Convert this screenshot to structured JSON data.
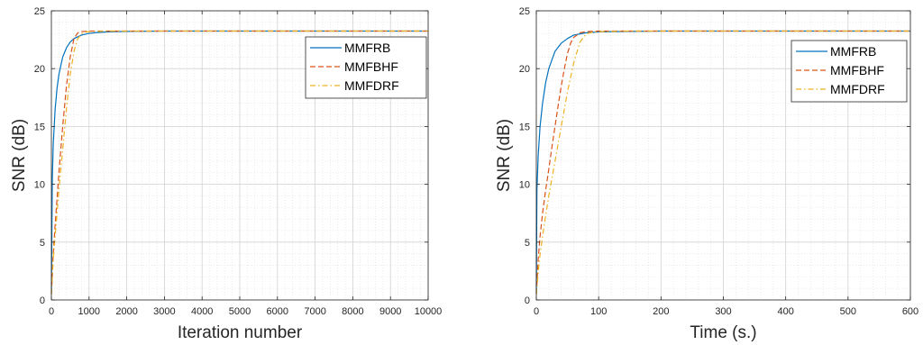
{
  "chart_data": [
    {
      "type": "line",
      "title": "",
      "xlabel": "Iteration number",
      "ylabel": "SNR (dB)",
      "xlim": [
        0,
        10000
      ],
      "ylim": [
        0,
        25
      ],
      "xticks": [
        0,
        1000,
        2000,
        3000,
        4000,
        5000,
        6000,
        7000,
        8000,
        9000,
        10000
      ],
      "xtick_labels": [
        "0",
        "1000",
        "2000",
        "3000",
        "4000",
        "5000",
        "6000",
        "7000",
        "8000",
        "9000",
        "10000"
      ],
      "yticks": [
        0,
        5,
        10,
        15,
        20,
        25
      ],
      "ytick_labels": [
        "0",
        "5",
        "10",
        "15",
        "20",
        "25"
      ],
      "grid": true,
      "minor_grid": true,
      "legend_position": "upper-right",
      "series": [
        {
          "name": "MMFRB",
          "color": "#0072BD",
          "dash": "solid",
          "x": [
            0,
            25,
            50,
            100,
            150,
            200,
            300,
            400,
            500,
            600,
            800,
            1000,
            1200,
            1500,
            2000,
            3000,
            5000,
            10000
          ],
          "y": [
            0.5,
            10.5,
            13.5,
            16.5,
            18.3,
            19.5,
            21.0,
            21.8,
            22.3,
            22.6,
            22.9,
            23.05,
            23.12,
            23.18,
            23.22,
            23.25,
            23.25,
            23.25
          ]
        },
        {
          "name": "MMFBHF",
          "color": "#D95319",
          "dash": "dashed",
          "x": [
            0,
            50,
            100,
            200,
            300,
            400,
            500,
            600,
            700,
            800,
            1000,
            1500,
            2000,
            5000,
            10000
          ],
          "y": [
            0.5,
            4.0,
            6.5,
            11.0,
            15.0,
            18.5,
            21.0,
            22.6,
            23.1,
            23.2,
            23.25,
            23.25,
            23.25,
            23.25,
            23.25
          ]
        },
        {
          "name": "MMFDRF",
          "color": "#EDB120",
          "dash": "dashdot",
          "x": [
            0,
            50,
            100,
            200,
            300,
            400,
            500,
            600,
            700,
            800,
            900,
            1000,
            1500,
            2000,
            5000,
            10000
          ],
          "y": [
            0.5,
            3.5,
            5.5,
            9.5,
            13.0,
            16.5,
            19.5,
            21.5,
            22.6,
            23.0,
            23.15,
            23.2,
            23.25,
            23.25,
            23.25,
            23.25
          ]
        }
      ]
    },
    {
      "type": "line",
      "title": "",
      "xlabel": "Time (s.)",
      "ylabel": "SNR (dB)",
      "xlim": [
        0,
        600
      ],
      "ylim": [
        0,
        25
      ],
      "xticks": [
        0,
        100,
        200,
        300,
        400,
        500,
        600
      ],
      "xtick_labels": [
        "0",
        "100",
        "200",
        "300",
        "400",
        "500",
        "600"
      ],
      "yticks": [
        0,
        5,
        10,
        15,
        20,
        25
      ],
      "ytick_labels": [
        "0",
        "5",
        "10",
        "15",
        "20",
        "25"
      ],
      "grid": true,
      "minor_grid": true,
      "legend_position": "upper-right",
      "series": [
        {
          "name": "MMFRB",
          "color": "#0072BD",
          "dash": "solid",
          "x": [
            0,
            1,
            3,
            6,
            10,
            15,
            20,
            30,
            40,
            50,
            60,
            80,
            100,
            150,
            200,
            300,
            600
          ],
          "y": [
            0.5,
            9.5,
            12.5,
            15.0,
            17.0,
            18.8,
            20.0,
            21.5,
            22.2,
            22.6,
            22.9,
            23.1,
            23.18,
            23.22,
            23.25,
            23.25,
            23.25
          ]
        },
        {
          "name": "MMFBHF",
          "color": "#D95319",
          "dash": "dashed",
          "x": [
            0,
            3,
            6,
            10,
            15,
            20,
            25,
            30,
            35,
            40,
            45,
            50,
            55,
            60,
            70,
            80,
            100,
            150,
            200,
            600
          ],
          "y": [
            0.5,
            3.5,
            5.5,
            7.5,
            9.5,
            11.3,
            13.2,
            15.0,
            16.8,
            18.5,
            20.0,
            21.3,
            22.2,
            22.7,
            23.1,
            23.2,
            23.25,
            23.25,
            23.25,
            23.25
          ]
        },
        {
          "name": "MMFDRF",
          "color": "#EDB120",
          "dash": "dashdot",
          "x": [
            0,
            5,
            10,
            15,
            20,
            25,
            30,
            40,
            50,
            60,
            70,
            80,
            90,
            100,
            150,
            200,
            600
          ],
          "y": [
            0.5,
            3.5,
            5.5,
            7.3,
            9.0,
            10.5,
            12.0,
            15.0,
            18.0,
            20.5,
            22.3,
            23.0,
            23.15,
            23.2,
            23.25,
            23.25,
            23.25
          ]
        }
      ]
    }
  ]
}
